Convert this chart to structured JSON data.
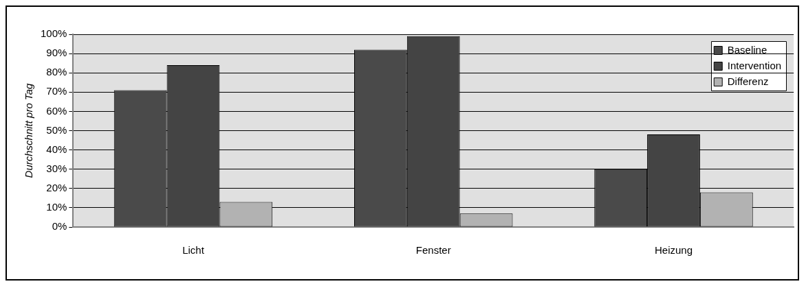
{
  "chart_data": {
    "type": "bar",
    "ylabel": "Durchschnitt pro Tag",
    "categories": [
      "Licht",
      "Fenster",
      "Heizung"
    ],
    "series": [
      {
        "name": "Baseline",
        "color": "#4a4a4a",
        "values": [
          71,
          92,
          30
        ]
      },
      {
        "name": "Intervention",
        "color": "#444444",
        "values": [
          84,
          99,
          48
        ]
      },
      {
        "name": "Differenz",
        "color": "#b2b2b2",
        "values": [
          13,
          7,
          18
        ]
      }
    ],
    "ylim": [
      0,
      100
    ],
    "yticks": [
      {
        "value": 0,
        "label": "0%"
      },
      {
        "value": 10,
        "label": "10%"
      },
      {
        "value": 20,
        "label": "20%"
      },
      {
        "value": 30,
        "label": "30%"
      },
      {
        "value": 40,
        "label": "40%"
      },
      {
        "value": 50,
        "label": "50%"
      },
      {
        "value": 60,
        "label": "60%"
      },
      {
        "value": 70,
        "label": "70%"
      },
      {
        "value": 80,
        "label": "80%"
      },
      {
        "value": 90,
        "label": "90%"
      },
      {
        "value": 100,
        "label": "100%"
      }
    ],
    "grid": "y",
    "legend": "top right"
  }
}
